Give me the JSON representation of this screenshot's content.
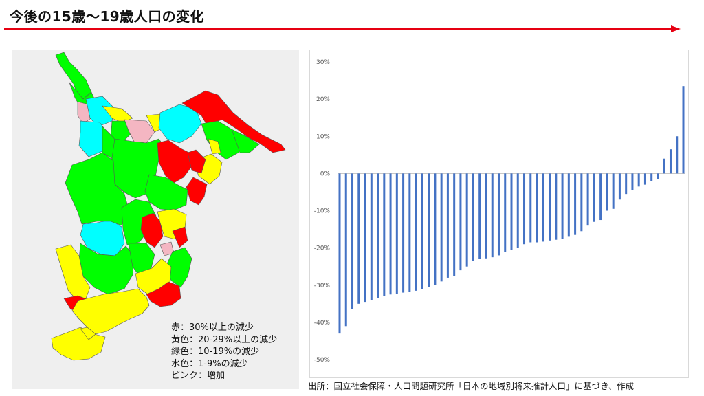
{
  "title": "今後の15歳～19歳人口の変化",
  "colors": {
    "title_rule": "#e60012",
    "red": "#ff0000",
    "yellow": "#ffff00",
    "green": "#00ff00",
    "cyan": "#00ffff",
    "pink": "#f4b6c2",
    "bar": "#4472c4"
  },
  "legend": [
    {
      "text": "赤：30%以上の減少",
      "color": "red"
    },
    {
      "text": "黄色：20-29%以上の減少",
      "color": "yellow"
    },
    {
      "text": "緑色：10-19%の減少",
      "color": "green"
    },
    {
      "text": "水色：1-9%の減少",
      "color": "cyan"
    },
    {
      "text": "ピンク：増加",
      "color": "pink"
    }
  ],
  "source": "出所：国立社会保障・人口問題研究所「日本の地域別将来推計人口」に基づき、作成",
  "chart_data": {
    "type": "bar",
    "ylim": [
      -50,
      30
    ],
    "yticks": [
      "30%",
      "20%",
      "10%",
      "0%",
      "-10%",
      "-20%",
      "-30%",
      "-40%",
      "-50%"
    ],
    "grid": false,
    "values": [
      -43,
      -41,
      -36.5,
      -35,
      -34.5,
      -34,
      -33.5,
      -33,
      -32.5,
      -32.3,
      -32,
      -31.8,
      -31.5,
      -31,
      -30.5,
      -30,
      -29,
      -28,
      -27.5,
      -26,
      -25,
      -23.5,
      -23,
      -22.8,
      -22.5,
      -22,
      -21,
      -20.5,
      -20,
      -19,
      -18.5,
      -18.5,
      -18.3,
      -18,
      -17.8,
      -17.5,
      -17,
      -16.5,
      -15.5,
      -14,
      -13,
      -12.5,
      -10,
      -9.5,
      -7,
      -5.5,
      -4.5,
      -3.5,
      -3,
      -2,
      -1.5,
      4,
      6.5,
      10,
      23.5
    ]
  }
}
